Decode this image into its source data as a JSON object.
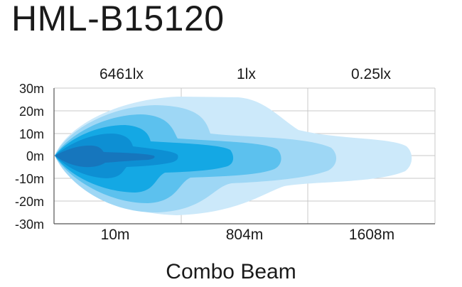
{
  "title": "HML-B15120",
  "caption": "Combo Beam",
  "lux_labels": [
    "6461lx",
    "1lx",
    "0.25lx"
  ],
  "y_ticks": [
    "30m",
    "20m",
    "10m",
    "0m",
    "-10m",
    "-20m",
    "-30m"
  ],
  "x_ticks": [
    "10m",
    "804m",
    "1608m"
  ],
  "colors": {
    "zone1": "#cce9fa",
    "zone2": "#9ed7f5",
    "zone3": "#5cc1ee",
    "zone4": "#14a8e4",
    "zone5": "#0d8fd3",
    "zone6": "#1676bd",
    "grid": "#c8c8c8",
    "axis": "#555555"
  }
}
